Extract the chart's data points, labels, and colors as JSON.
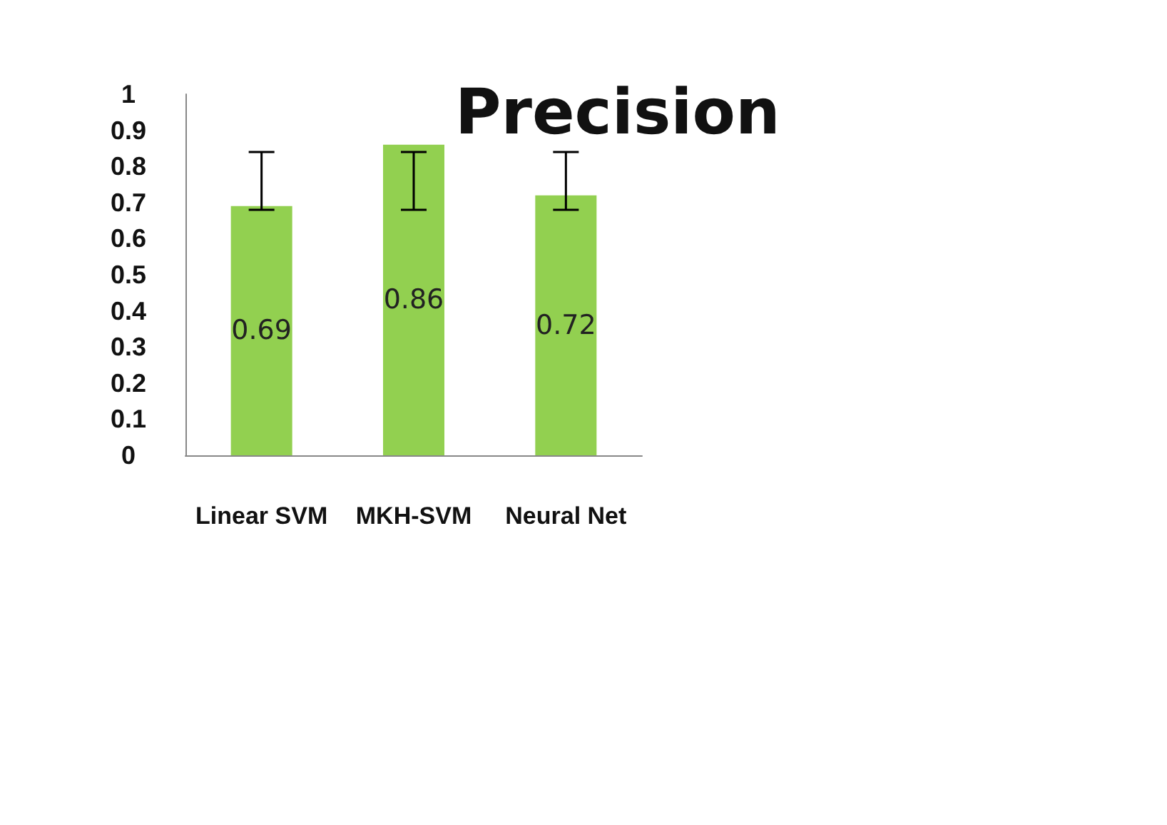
{
  "chart_data": {
    "type": "bar",
    "title": "Precision",
    "categories": [
      "Linear SVM",
      "MKH-SVM",
      "Neural Net"
    ],
    "values": [
      0.69,
      0.86,
      0.72
    ],
    "color": "#92d050",
    "errors": [
      [
        0.68,
        0.84
      ],
      [
        0.68,
        0.84
      ],
      [
        0.68,
        0.84
      ]
    ],
    "ylim": [
      0,
      1
    ],
    "yticks": [
      0,
      0.1,
      0.2,
      0.3,
      0.4,
      0.5,
      0.6,
      0.7,
      0.8,
      0.9,
      1
    ],
    "grid": false,
    "data_labels": true
  }
}
